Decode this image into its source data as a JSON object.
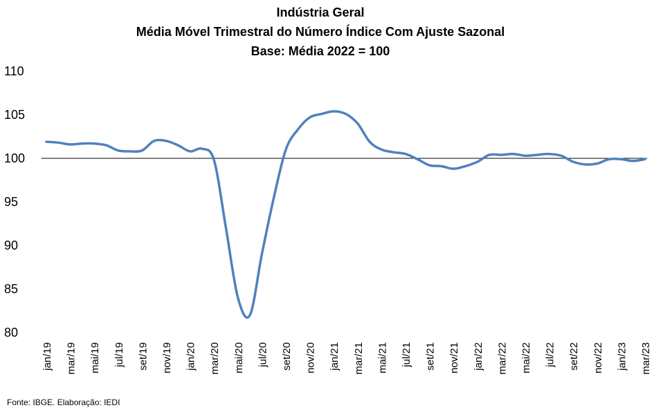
{
  "chart_data": {
    "type": "line",
    "title": [
      "Indústria Geral",
      "Média Móvel Trimestral do Número Índice Com Ajuste Sazonal",
      "Base: Média 2022 = 100"
    ],
    "xlabel": "",
    "ylabel": "",
    "ylim": [
      80,
      110
    ],
    "yticks": [
      "110",
      "105",
      "100",
      "95",
      "90",
      "85",
      "80"
    ],
    "reference_line": 100,
    "x_tick_labels": [
      "jan/19",
      "mar/19",
      "mai/19",
      "jul/19",
      "set/19",
      "nov/19",
      "jan/20",
      "mar/20",
      "mai/20",
      "jul/20",
      "set/20",
      "nov/20",
      "jan/21",
      "mar/21",
      "mai/21",
      "jul/21",
      "set/21",
      "nov/21",
      "jan/22",
      "mar/22",
      "mai/22",
      "jul/22",
      "set/22",
      "nov/22",
      "jan/23",
      "mar/23"
    ],
    "x": [
      "jan/19",
      "fev/19",
      "mar/19",
      "abr/19",
      "mai/19",
      "jun/19",
      "jul/19",
      "ago/19",
      "set/19",
      "out/19",
      "nov/19",
      "dez/19",
      "jan/20",
      "fev/20",
      "mar/20",
      "abr/20",
      "mai/20",
      "jun/20",
      "jul/20",
      "ago/20",
      "set/20",
      "out/20",
      "nov/20",
      "dez/20",
      "jan/21",
      "fev/21",
      "mar/21",
      "abr/21",
      "mai/21",
      "jun/21",
      "jul/21",
      "ago/21",
      "set/21",
      "out/21",
      "nov/21",
      "dez/21",
      "jan/22",
      "fev/22",
      "mar/22",
      "abr/22",
      "mai/22",
      "jun/22",
      "jul/22",
      "ago/22",
      "set/22",
      "out/22",
      "nov/22",
      "dez/22",
      "jan/23",
      "fev/23",
      "mar/23"
    ],
    "series": [
      {
        "values": [
          101.9,
          101.8,
          101.6,
          101.7,
          101.7,
          101.5,
          100.9,
          100.8,
          100.9,
          102.0,
          102.0,
          101.5,
          100.8,
          101.1,
          99.8,
          92.0,
          84.0,
          82.0,
          89.0,
          95.5,
          101.0,
          103.3,
          104.7,
          105.1,
          105.4,
          105.1,
          104.0,
          101.9,
          101.0,
          100.7,
          100.5,
          99.9,
          99.2,
          99.1,
          98.8,
          99.1,
          99.6,
          100.4,
          100.4,
          100.5,
          100.3,
          100.4,
          100.5,
          100.3,
          99.6,
          99.3,
          99.4,
          99.9,
          99.9,
          99.7,
          99.9
        ],
        "color": "#4f81bd"
      }
    ],
    "grid": false,
    "legend": "none"
  },
  "footer": {
    "source": "Fonte: IBGE. Elaboração: IEDI"
  }
}
